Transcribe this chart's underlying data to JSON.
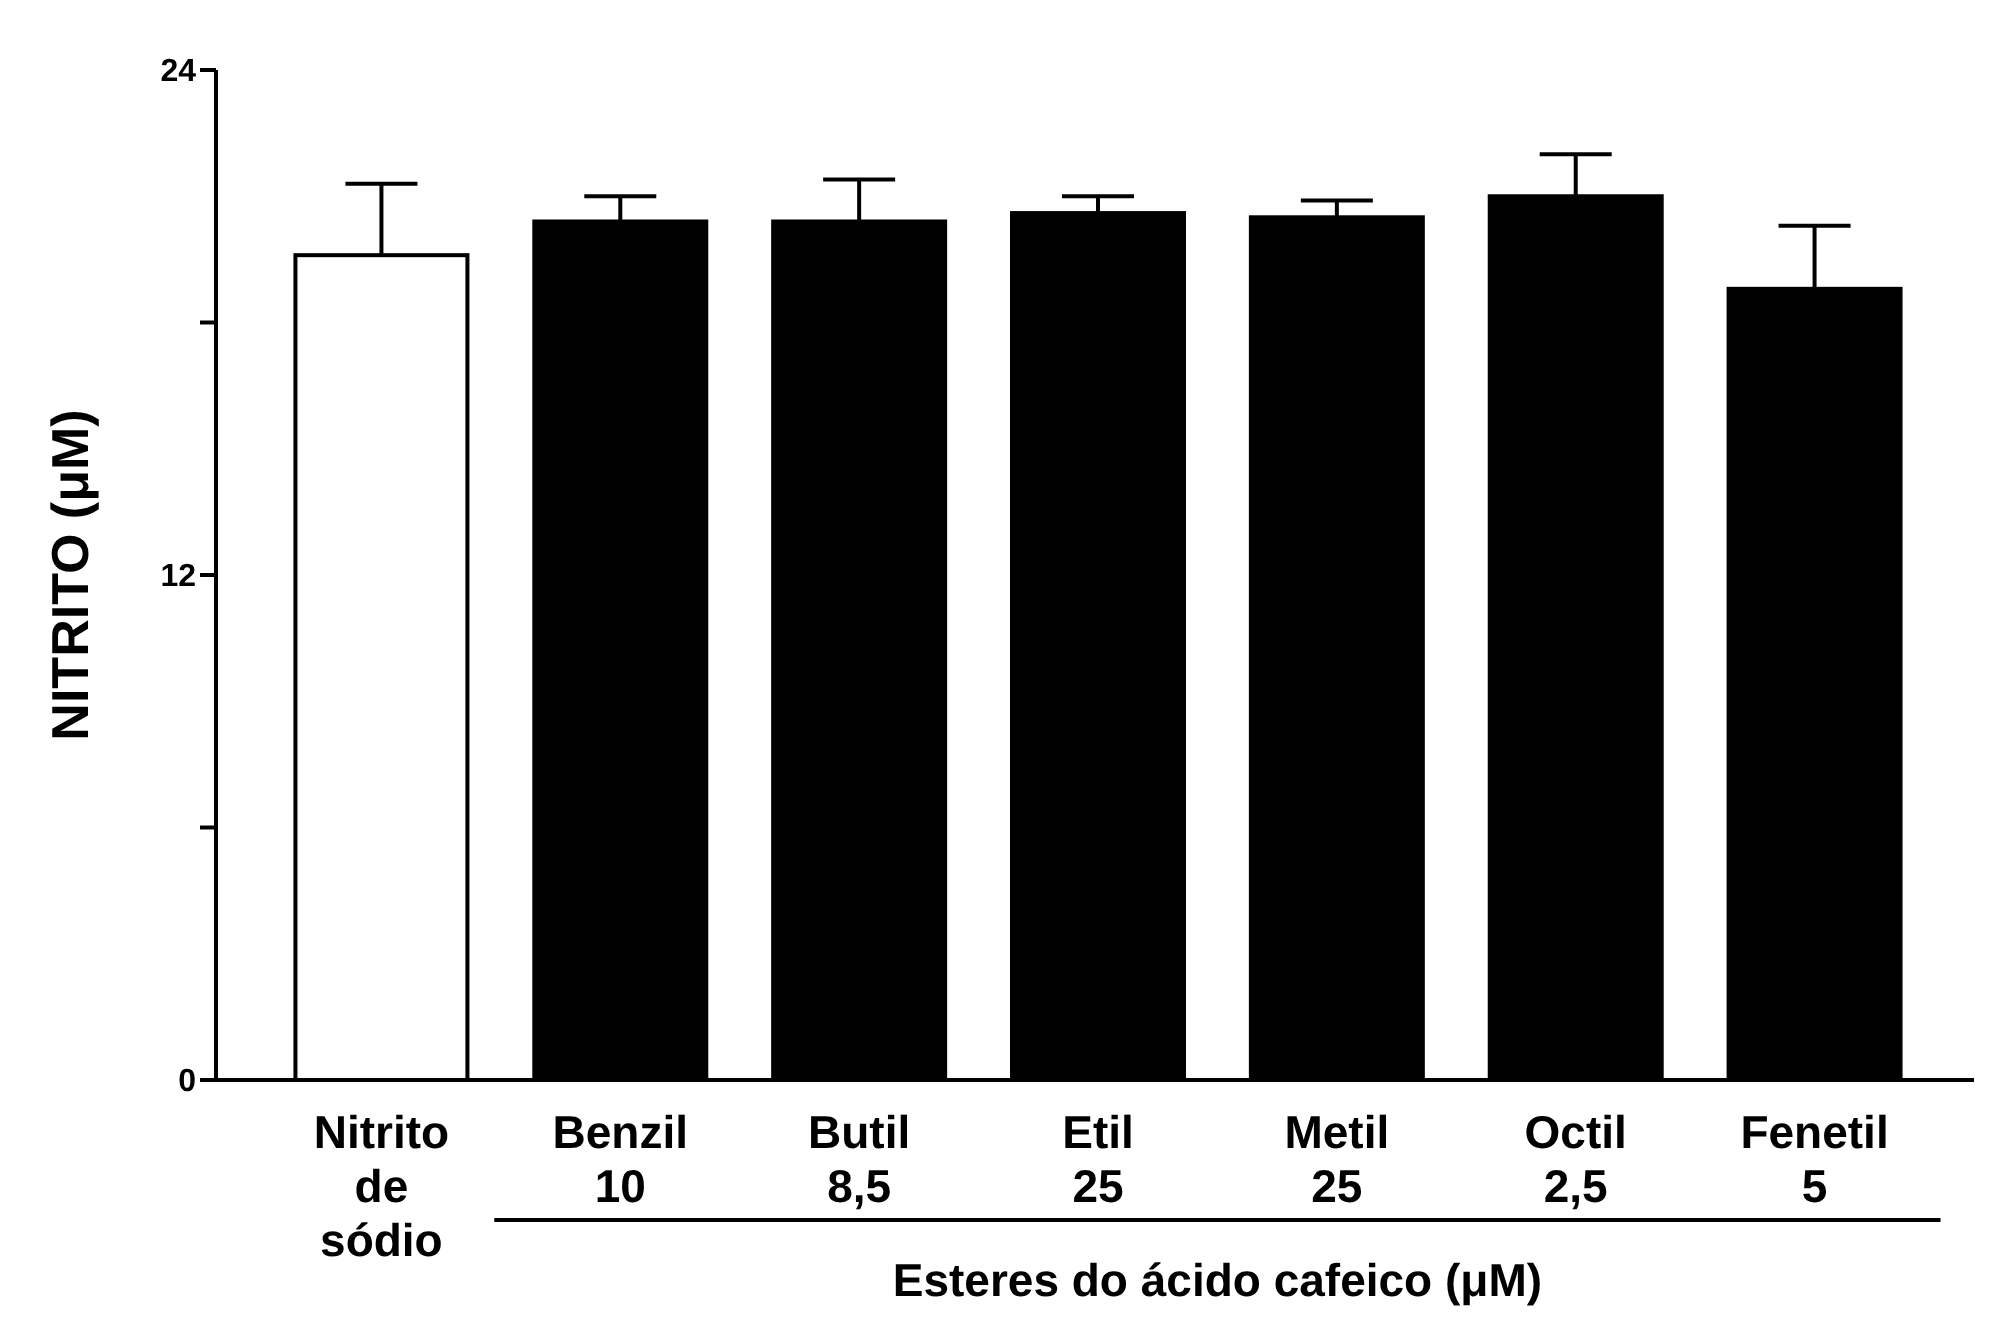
{
  "chart_data": {
    "type": "bar",
    "ylabel": "NITRITO (μM)",
    "categories": [
      "Nitrito\nde\nsódio",
      "Benzil\n10",
      "Butil\n8,5",
      "Etil\n25",
      "Metil\n25",
      "Octil\n2,5",
      "Fenetil\n5"
    ],
    "values": [
      19.6,
      20.4,
      20.4,
      20.6,
      20.5,
      21.0,
      18.8
    ],
    "errors": [
      [
        19.6,
        21.3
      ],
      [
        20.4,
        21.0
      ],
      [
        20.4,
        21.4
      ],
      [
        20.6,
        21.0
      ],
      [
        20.5,
        20.9
      ],
      [
        21.0,
        22.0
      ],
      [
        18.8,
        20.3
      ]
    ],
    "colors": [
      "#ffffff",
      "#000000",
      "#000000",
      "#000000",
      "#000000",
      "#000000",
      "#000000"
    ],
    "ylim": [
      0,
      24
    ],
    "yticks": [
      0,
      {
        "value": 6,
        "label": null
      },
      12,
      {
        "value": 18,
        "label": null
      },
      24
    ],
    "annotations": [
      "Esteres do ácido cafeico (μM)"
    ]
  }
}
